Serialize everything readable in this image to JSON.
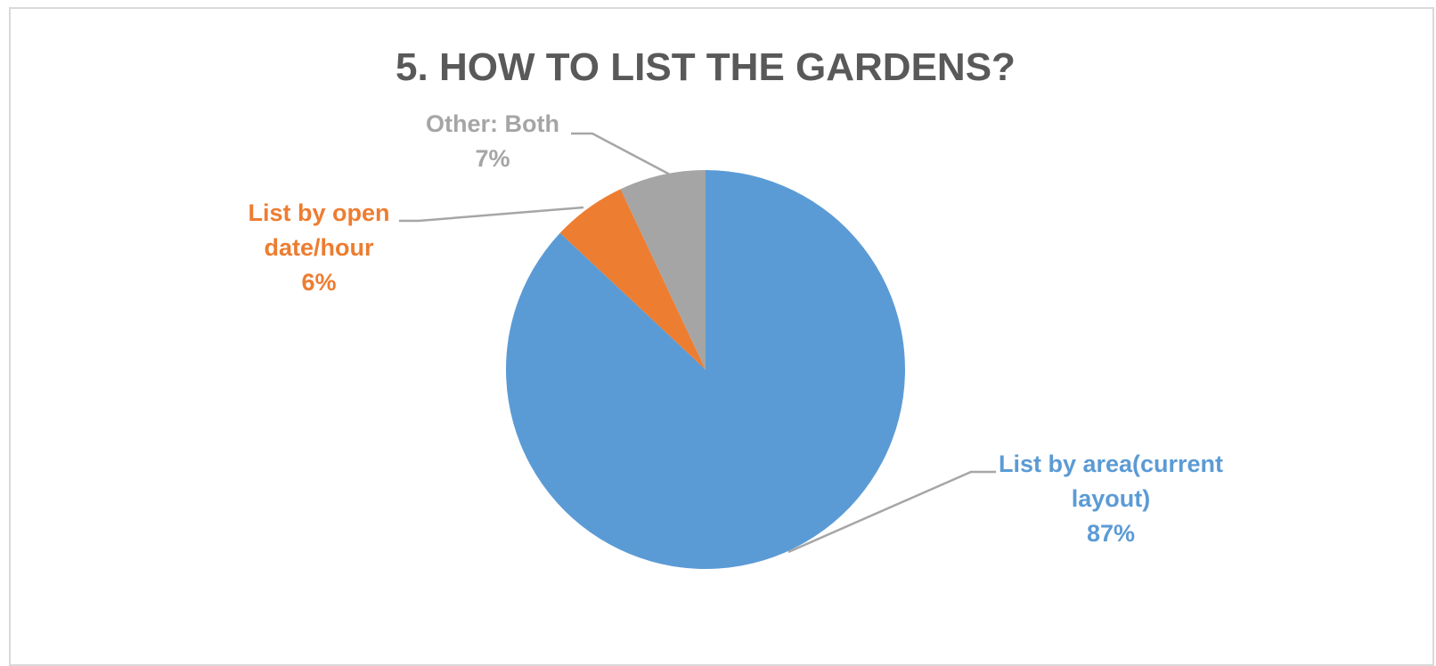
{
  "chart_data": {
    "type": "pie",
    "title": "5. HOW TO LIST THE GARDENS?",
    "start_angle_deg": 0,
    "direction": "clockwise",
    "slices": [
      {
        "name": "List by area(current layout)",
        "label_lines": [
          "List by area(current",
          "layout)"
        ],
        "value": 87,
        "value_label": "87%",
        "color": "#5b9bd5"
      },
      {
        "name": "List by open date/hour",
        "label_lines": [
          "List by open",
          "date/hour"
        ],
        "value": 6,
        "value_label": "6%",
        "color": "#ed7d31"
      },
      {
        "name": "Other: Both",
        "label_lines": [
          "Other: Both"
        ],
        "value": 7,
        "value_label": "7%",
        "color": "#a5a5a5"
      }
    ],
    "label_colors": [
      "#5b9bd5",
      "#ed7d31",
      "#a5a5a5"
    ],
    "leader_line_color": "#a6a6a6",
    "title_color": "#595959",
    "legend": "none"
  }
}
